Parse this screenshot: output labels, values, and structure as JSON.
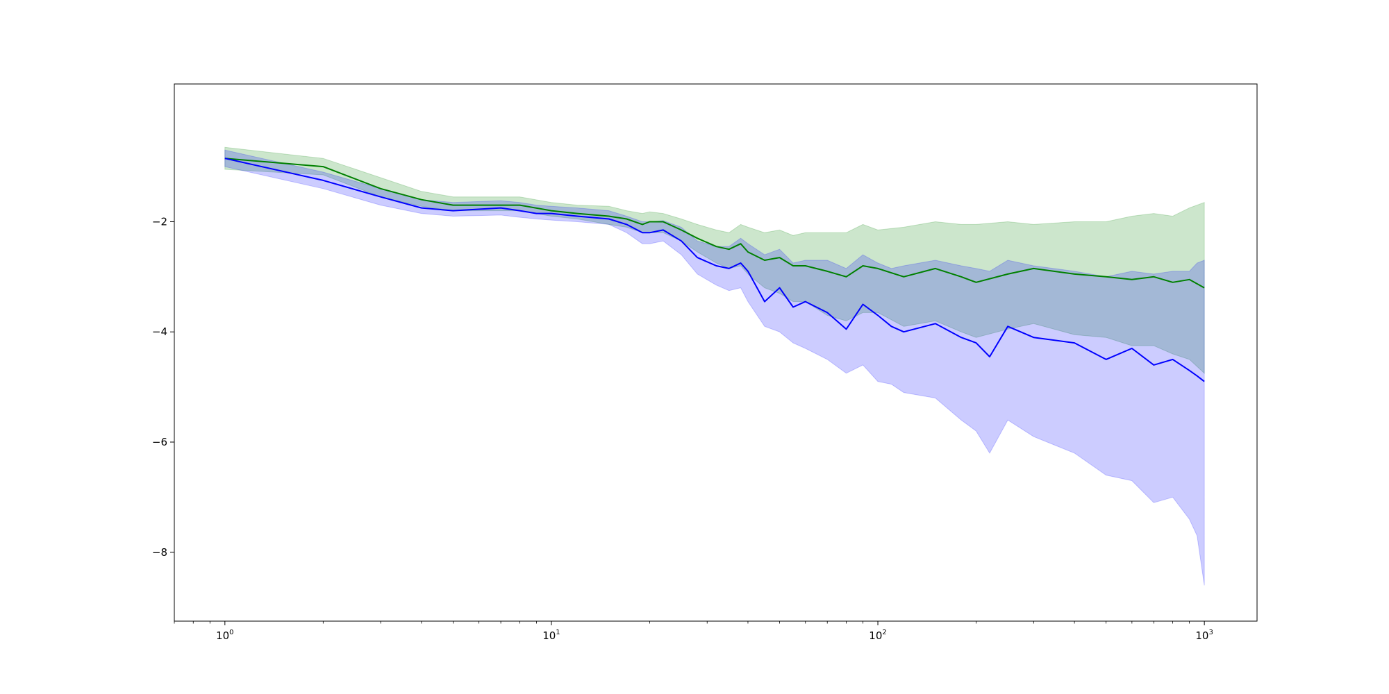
{
  "chart_data": {
    "type": "line",
    "title": "",
    "xlabel": "",
    "ylabel": "",
    "xscale": "log",
    "xlim": [
      0.7,
      1450
    ],
    "ylim": [
      -9.25,
      0.5
    ],
    "grid": false,
    "legend": "none",
    "x_ticks": [
      {
        "value": 1,
        "base": "10",
        "exp": "0"
      },
      {
        "value": 10,
        "base": "10",
        "exp": "1"
      },
      {
        "value": 100,
        "base": "10",
        "exp": "2"
      },
      {
        "value": 1000,
        "base": "10",
        "exp": "3"
      }
    ],
    "y_ticks": [
      {
        "value": -2,
        "label": "−2"
      },
      {
        "value": -4,
        "label": "−4"
      },
      {
        "value": -6,
        "label": "−6"
      },
      {
        "value": -8,
        "label": "−8"
      }
    ],
    "series": [
      {
        "color": "#008000",
        "band_color": "#008000",
        "band_opacity": 0.2,
        "x": [
          1,
          2,
          3,
          4,
          5,
          7,
          8,
          10,
          12,
          15,
          17,
          19,
          20,
          22,
          25,
          28,
          32,
          35,
          38,
          40,
          45,
          50,
          55,
          60,
          70,
          80,
          90,
          100,
          120,
          150,
          180,
          200,
          250,
          300,
          400,
          500,
          600,
          700,
          800,
          900,
          1000
        ],
        "y": [
          -0.85,
          -1.0,
          -1.4,
          -1.6,
          -1.7,
          -1.7,
          -1.7,
          -1.8,
          -1.85,
          -1.9,
          -1.95,
          -2.05,
          -2.0,
          -2.0,
          -2.15,
          -2.3,
          -2.45,
          -2.5,
          -2.4,
          -2.55,
          -2.7,
          -2.65,
          -2.8,
          -2.8,
          -2.9,
          -3.0,
          -2.8,
          -2.85,
          -3.0,
          -2.85,
          -3.0,
          -3.1,
          -2.95,
          -2.85,
          -2.95,
          -3.0,
          -3.05,
          -3.0,
          -3.1,
          -3.05,
          -3.2
        ],
        "upper": [
          -0.65,
          -0.85,
          -1.2,
          -1.45,
          -1.55,
          -1.55,
          -1.55,
          -1.65,
          -1.7,
          -1.72,
          -1.8,
          -1.85,
          -1.82,
          -1.85,
          -1.95,
          -2.05,
          -2.15,
          -2.2,
          -2.05,
          -2.1,
          -2.2,
          -2.15,
          -2.25,
          -2.2,
          -2.2,
          -2.2,
          -2.05,
          -2.15,
          -2.1,
          -2.0,
          -2.05,
          -2.05,
          -2.0,
          -2.05,
          -2.0,
          -2.0,
          -1.9,
          -1.85,
          -1.9,
          -1.75,
          -1.65
        ],
        "lower": [
          -1.05,
          -1.15,
          -1.55,
          -1.72,
          -1.8,
          -1.8,
          -1.8,
          -1.9,
          -1.95,
          -2.05,
          -2.1,
          -2.2,
          -2.2,
          -2.2,
          -2.35,
          -2.55,
          -2.75,
          -2.85,
          -2.8,
          -2.95,
          -3.2,
          -3.3,
          -3.45,
          -3.45,
          -3.7,
          -3.8,
          -3.65,
          -3.65,
          -3.9,
          -3.8,
          -4.0,
          -4.1,
          -3.95,
          -3.85,
          -4.05,
          -4.1,
          -4.25,
          -4.25,
          -4.4,
          -4.5,
          -4.75
        ]
      },
      {
        "color": "#0000ff",
        "band_color": "#0000ff",
        "band_opacity": 0.2,
        "x": [
          1,
          2,
          3,
          4,
          5,
          7,
          8,
          9,
          10,
          12,
          15,
          17,
          19,
          20,
          22,
          25,
          28,
          32,
          35,
          38,
          40,
          45,
          50,
          55,
          60,
          70,
          80,
          90,
          100,
          110,
          120,
          150,
          180,
          200,
          220,
          250,
          300,
          400,
          500,
          600,
          700,
          800,
          900,
          950,
          1000
        ],
        "y": [
          -0.85,
          -1.25,
          -1.55,
          -1.75,
          -1.8,
          -1.75,
          -1.8,
          -1.85,
          -1.85,
          -1.9,
          -1.95,
          -2.05,
          -2.2,
          -2.2,
          -2.15,
          -2.35,
          -2.65,
          -2.8,
          -2.85,
          -2.75,
          -2.9,
          -3.45,
          -3.2,
          -3.55,
          -3.45,
          -3.65,
          -3.95,
          -3.5,
          -3.7,
          -3.9,
          -4.0,
          -3.85,
          -4.1,
          -4.2,
          -4.45,
          -3.9,
          -4.1,
          -4.2,
          -4.5,
          -4.3,
          -4.6,
          -4.5,
          -4.7,
          -4.8,
          -4.9
        ],
        "upper": [
          -0.7,
          -1.1,
          -1.4,
          -1.6,
          -1.65,
          -1.62,
          -1.65,
          -1.7,
          -1.72,
          -1.75,
          -1.8,
          -1.9,
          -2.0,
          -2.0,
          -1.98,
          -2.1,
          -2.35,
          -2.45,
          -2.45,
          -2.3,
          -2.4,
          -2.6,
          -2.5,
          -2.75,
          -2.7,
          -2.7,
          -2.85,
          -2.6,
          -2.75,
          -2.85,
          -2.8,
          -2.7,
          -2.8,
          -2.85,
          -2.9,
          -2.7,
          -2.8,
          -2.9,
          -3.0,
          -2.9,
          -2.95,
          -2.9,
          -2.9,
          -2.75,
          -2.7
        ],
        "lower": [
          -1.0,
          -1.4,
          -1.7,
          -1.85,
          -1.9,
          -1.88,
          -1.92,
          -1.95,
          -1.97,
          -2.0,
          -2.05,
          -2.2,
          -2.4,
          -2.4,
          -2.35,
          -2.6,
          -2.95,
          -3.15,
          -3.25,
          -3.2,
          -3.45,
          -3.9,
          -4.0,
          -4.2,
          -4.3,
          -4.5,
          -4.75,
          -4.6,
          -4.9,
          -4.95,
          -5.1,
          -5.2,
          -5.6,
          -5.8,
          -6.2,
          -5.6,
          -5.9,
          -6.2,
          -6.6,
          -6.7,
          -7.1,
          -7.0,
          -7.4,
          -7.7,
          -8.6
        ]
      }
    ]
  }
}
